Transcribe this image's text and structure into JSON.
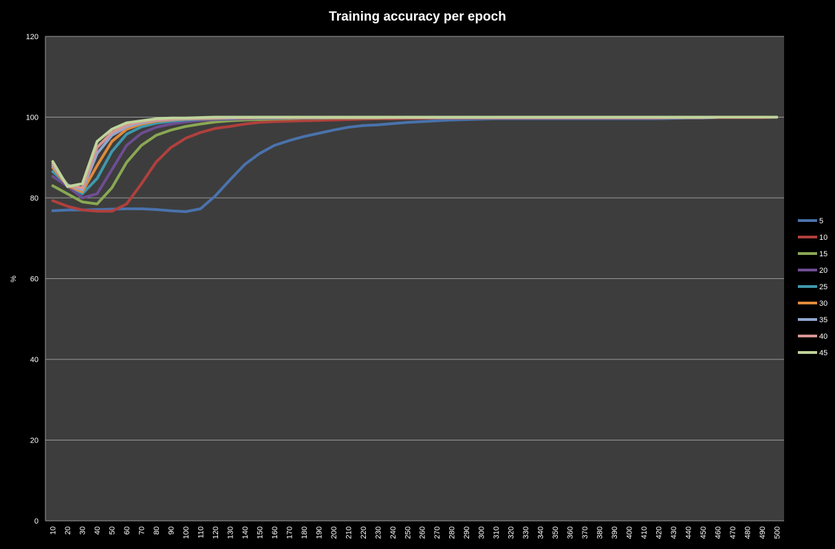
{
  "chart_data": {
    "type": "line",
    "title": "Training accuracy per epoch",
    "xlabel": "",
    "ylabel": "%",
    "ylim": [
      0,
      120
    ],
    "yticks": [
      0,
      20,
      40,
      60,
      80,
      100,
      120
    ],
    "grid": true,
    "legend_position": "right",
    "x": [
      10,
      20,
      30,
      40,
      50,
      60,
      70,
      80,
      90,
      100,
      110,
      120,
      130,
      140,
      150,
      160,
      170,
      180,
      190,
      200,
      210,
      220,
      230,
      240,
      250,
      260,
      270,
      280,
      290,
      300,
      310,
      320,
      330,
      340,
      350,
      360,
      370,
      380,
      390,
      400,
      410,
      420,
      430,
      440,
      450,
      460,
      470,
      480,
      490,
      500
    ],
    "series": [
      {
        "name": "5",
        "color": "#4a72ac",
        "values": [
          76.8,
          77.0,
          77.0,
          77.1,
          77.2,
          77.3,
          77.3,
          77.1,
          76.8,
          76.6,
          77.3,
          80.5,
          84.5,
          88.3,
          91.0,
          93.0,
          94.2,
          95.2,
          96.0,
          96.8,
          97.5,
          97.9,
          98.1,
          98.4,
          98.7,
          98.9,
          99.1,
          99.3,
          99.4,
          99.5,
          99.6,
          99.6,
          99.6,
          99.6,
          99.6,
          99.6,
          99.6,
          99.6,
          99.6,
          99.6,
          99.6,
          99.6,
          99.7,
          99.8,
          99.8,
          99.9,
          99.9,
          99.9,
          99.9,
          100.0
        ]
      },
      {
        "name": "10",
        "color": "#b0403d",
        "values": [
          79.3,
          77.9,
          77.0,
          76.7,
          76.7,
          78.5,
          83.5,
          88.9,
          92.5,
          94.8,
          96.2,
          97.2,
          97.7,
          98.3,
          98.7,
          98.9,
          99.0,
          99.1,
          99.2,
          99.3,
          99.4,
          99.5,
          99.6,
          99.6,
          99.7,
          99.7,
          99.8,
          99.8,
          99.8,
          99.8,
          99.8,
          99.8,
          99.8,
          99.8,
          99.8,
          99.8,
          99.8,
          99.8,
          99.8,
          99.8,
          99.8,
          99.8,
          99.9,
          99.9,
          99.9,
          99.9,
          99.9,
          99.9,
          99.9,
          100.0
        ]
      },
      {
        "name": "15",
        "color": "#8aa853",
        "values": [
          83.0,
          81.0,
          79.0,
          78.5,
          82.5,
          88.8,
          93.0,
          95.5,
          96.8,
          97.7,
          98.3,
          98.8,
          99.1,
          99.3,
          99.4,
          99.5,
          99.6,
          99.7,
          99.7,
          99.8,
          99.8,
          99.8,
          99.8,
          99.9,
          99.9,
          99.9,
          99.9,
          99.9,
          99.9,
          99.9,
          99.9,
          99.9,
          99.9,
          99.9,
          99.9,
          99.9,
          99.9,
          99.9,
          99.9,
          99.9,
          99.9,
          99.9,
          99.9,
          99.9,
          99.9,
          100.0,
          100.0,
          100.0,
          100.0,
          100.0
        ]
      },
      {
        "name": "20",
        "color": "#6e4d92",
        "values": [
          85.3,
          82.9,
          80.0,
          81.0,
          87.0,
          93.0,
          96.0,
          97.5,
          98.3,
          98.8,
          99.2,
          99.4,
          99.5,
          99.6,
          99.7,
          99.7,
          99.8,
          99.8,
          99.8,
          99.9,
          99.9,
          99.9,
          99.9,
          99.9,
          99.9,
          99.9,
          99.9,
          99.9,
          99.9,
          99.9,
          99.9,
          99.9,
          99.9,
          99.9,
          99.9,
          99.9,
          99.9,
          99.9,
          99.9,
          99.9,
          99.9,
          99.9,
          99.9,
          99.9,
          99.9,
          100.0,
          100.0,
          100.0,
          100.0,
          100.0
        ]
      },
      {
        "name": "25",
        "color": "#3f98ac",
        "values": [
          86.5,
          83.3,
          81.0,
          84.8,
          91.5,
          95.8,
          97.6,
          98.5,
          99.0,
          99.3,
          99.5,
          99.6,
          99.7,
          99.8,
          99.8,
          99.8,
          99.9,
          99.9,
          99.9,
          99.9,
          99.9,
          99.9,
          99.9,
          99.9,
          99.9,
          99.9,
          99.9,
          99.9,
          99.9,
          99.9,
          99.9,
          99.9,
          99.9,
          99.9,
          99.9,
          99.9,
          99.9,
          99.9,
          99.9,
          99.9,
          99.9,
          99.9,
          99.9,
          99.9,
          99.9,
          100.0,
          100.0,
          100.0,
          100.0,
          100.0
        ]
      },
      {
        "name": "30",
        "color": "#e08a3c",
        "values": [
          87.5,
          83.0,
          81.5,
          88.0,
          94.0,
          97.0,
          98.3,
          99.0,
          99.3,
          99.5,
          99.6,
          99.7,
          99.8,
          99.8,
          99.9,
          99.9,
          99.9,
          99.9,
          99.9,
          99.9,
          99.9,
          99.9,
          99.9,
          99.9,
          99.9,
          99.9,
          99.9,
          99.9,
          99.9,
          99.9,
          99.9,
          99.9,
          99.9,
          99.9,
          99.9,
          99.9,
          99.9,
          99.9,
          99.9,
          99.9,
          99.9,
          99.9,
          99.9,
          99.9,
          99.9,
          100.0,
          100.0,
          100.0,
          100.0,
          100.0
        ]
      },
      {
        "name": "35",
        "color": "#8fa7cf",
        "values": [
          88.0,
          83.2,
          82.0,
          91.0,
          95.5,
          97.6,
          98.6,
          99.2,
          99.4,
          99.6,
          99.7,
          99.8,
          99.8,
          99.9,
          99.9,
          99.9,
          99.9,
          99.9,
          99.9,
          99.9,
          99.9,
          99.9,
          99.9,
          99.9,
          99.9,
          99.9,
          99.9,
          99.9,
          99.9,
          99.9,
          99.9,
          99.9,
          99.9,
          99.9,
          99.9,
          99.9,
          99.9,
          99.9,
          99.9,
          99.9,
          99.9,
          99.9,
          99.9,
          99.9,
          99.9,
          100.0,
          100.0,
          100.0,
          100.0,
          100.0
        ]
      },
      {
        "name": "40",
        "color": "#d79693",
        "values": [
          88.5,
          83.0,
          82.5,
          92.5,
          96.2,
          98.0,
          98.9,
          99.3,
          99.5,
          99.7,
          99.8,
          99.8,
          99.9,
          99.9,
          99.9,
          99.9,
          99.9,
          99.9,
          99.9,
          99.9,
          99.9,
          99.9,
          99.9,
          99.9,
          99.9,
          99.9,
          99.9,
          99.9,
          99.9,
          99.9,
          99.9,
          99.9,
          99.9,
          99.9,
          99.9,
          99.9,
          99.9,
          99.9,
          99.9,
          99.9,
          99.9,
          99.9,
          99.9,
          99.9,
          99.9,
          100.0,
          100.0,
          100.0,
          100.0,
          100.0
        ]
      },
      {
        "name": "45",
        "color": "#bfd49b",
        "values": [
          89.0,
          82.8,
          83.5,
          94.0,
          97.0,
          98.6,
          99.1,
          99.6,
          99.8,
          99.8,
          99.9,
          100.0,
          100.0,
          100.0,
          100.0,
          100.0,
          100.0,
          100.0,
          100.0,
          100.0,
          100.0,
          100.0,
          100.0,
          100.0,
          100.0,
          100.0,
          100.0,
          100.0,
          100.0,
          100.0,
          100.0,
          100.0,
          100.0,
          100.0,
          100.0,
          100.0,
          100.0,
          100.0,
          100.0,
          100.0,
          100.0,
          100.0,
          100.0,
          100.0,
          100.0,
          100.0,
          100.0,
          100.0,
          100.0,
          100.0
        ]
      }
    ]
  }
}
